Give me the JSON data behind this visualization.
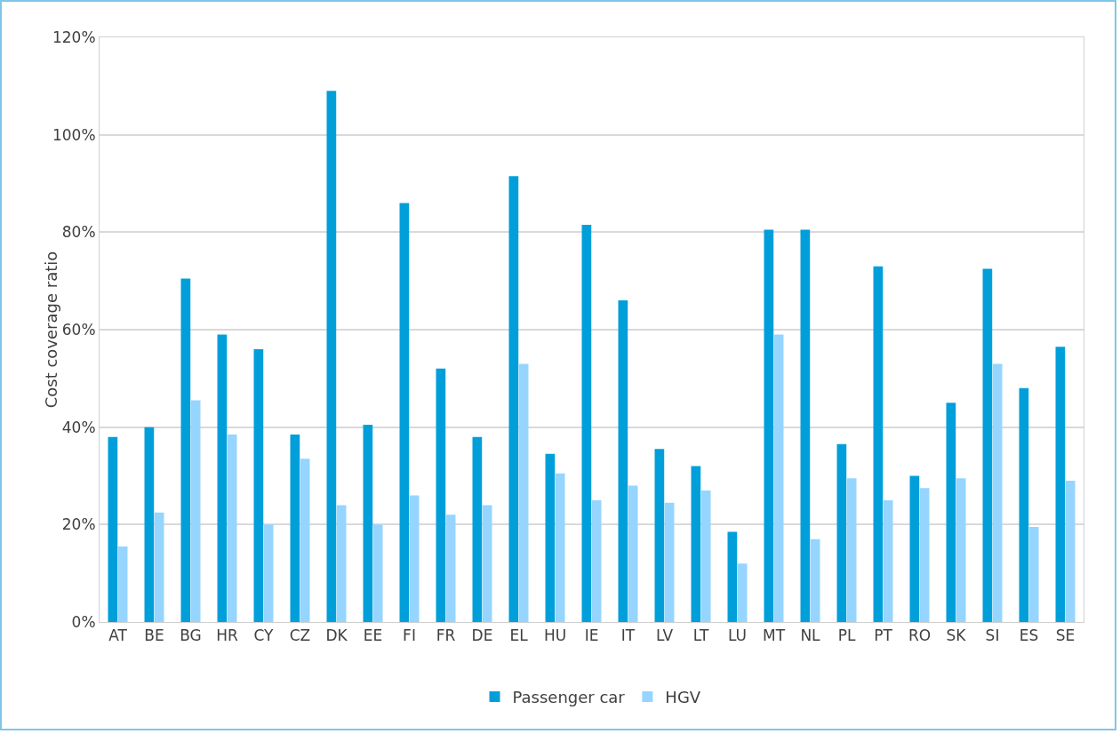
{
  "chart_data": {
    "type": "bar",
    "ylabel": "Cost coverage ratio",
    "categories": [
      "AT",
      "BE",
      "BG",
      "HR",
      "CY",
      "CZ",
      "DK",
      "EE",
      "FI",
      "FR",
      "DE",
      "EL",
      "HU",
      "IE",
      "IT",
      "LV",
      "LT",
      "LU",
      "MT",
      "NL",
      "PL",
      "PT",
      "RO",
      "SK",
      "SI",
      "ES",
      "SE"
    ],
    "series": [
      {
        "name": "Passenger car",
        "color": "#009fda",
        "values": [
          38,
          40,
          70.5,
          59,
          56,
          38.5,
          109,
          40.5,
          86,
          52,
          38,
          91.5,
          34.5,
          81.5,
          66,
          35.5,
          32,
          18.5,
          80.5,
          80.5,
          36.5,
          73,
          30,
          45,
          72.5,
          48,
          56.5
        ]
      },
      {
        "name": "HGV",
        "color": "#95d5ff",
        "values": [
          15.5,
          22.5,
          45.5,
          38.5,
          20,
          33.5,
          24,
          20,
          26,
          22,
          24,
          53,
          30.5,
          25,
          28,
          24.5,
          27,
          12,
          59,
          17,
          29.5,
          25,
          27.5,
          29.5,
          53,
          19.5,
          29
        ]
      }
    ],
    "ylim": [
      0,
      120
    ],
    "yticks": [
      {
        "value": 0,
        "label": "0%"
      },
      {
        "value": 20,
        "label": "20%"
      },
      {
        "value": 40,
        "label": "40%"
      },
      {
        "value": 60,
        "label": "60%"
      },
      {
        "value": 80,
        "label": "80%"
      },
      {
        "value": 100,
        "label": "100%"
      },
      {
        "value": 120,
        "label": "120%"
      }
    ],
    "grid": "y",
    "legend": "bottom"
  }
}
